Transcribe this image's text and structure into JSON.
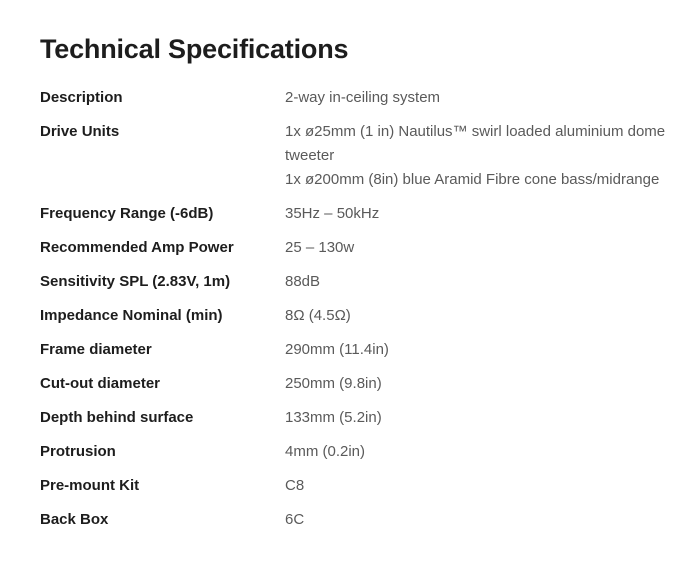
{
  "page": {
    "title": "Technical Specifications"
  },
  "spec_table": {
    "rows": [
      {
        "label": "Description",
        "value_lines": [
          "2-way in-ceiling system"
        ]
      },
      {
        "label": "Drive Units",
        "value_lines": [
          "1x ø25mm (1 in) Nautilus™ swirl loaded aluminium dome tweeter",
          "1x ø200mm (8in) blue Aramid Fibre cone bass/midrange"
        ]
      },
      {
        "label": "Frequency Range (-6dB)",
        "value_lines": [
          "35Hz – 50kHz"
        ]
      },
      {
        "label": "Recommended Amp Power",
        "value_lines": [
          "25 – 130w"
        ]
      },
      {
        "label": "Sensitivity SPL (2.83V, 1m)",
        "value_lines": [
          "88dB"
        ]
      },
      {
        "label": "Impedance Nominal (min)",
        "value_lines": [
          "8Ω (4.5Ω)"
        ]
      },
      {
        "label": "Frame diameter",
        "value_lines": [
          "290mm (11.4in)"
        ]
      },
      {
        "label": "Cut-out diameter",
        "value_lines": [
          "250mm (9.8in)"
        ]
      },
      {
        "label": "Depth behind surface",
        "value_lines": [
          "133mm (5.2in)"
        ]
      },
      {
        "label": "Protrusion",
        "value_lines": [
          "4mm (0.2in)"
        ]
      },
      {
        "label": "Pre-mount Kit",
        "value_lines": [
          "C8"
        ]
      },
      {
        "label": "Back Box",
        "value_lines": [
          "6C"
        ]
      }
    ]
  },
  "colors": {
    "background": "#ffffff",
    "text_primary": "#1d1d1d",
    "text_secondary": "#5a5a5a"
  }
}
